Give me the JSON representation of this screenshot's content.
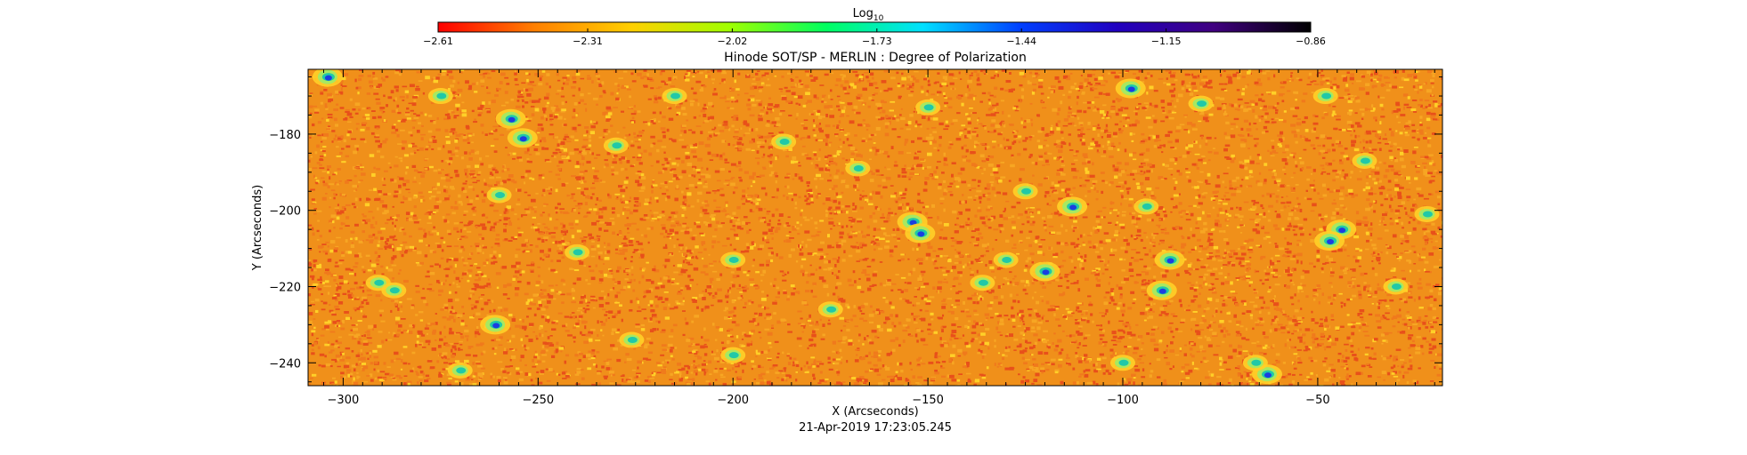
{
  "chart_data": {
    "type": "heatmap",
    "title": "Hinode SOT/SP - MERLIN : Degree of Polarization",
    "xlabel": "X (Arcseconds)",
    "ylabel": "Y (Arcseconds)",
    "timestamp": "21-Apr-2019 17:23:05.245",
    "xlim": [
      -309,
      -18
    ],
    "ylim": [
      -246,
      -163
    ],
    "x_ticks": [
      -300,
      -250,
      -200,
      -150,
      -100,
      -50
    ],
    "x_tick_labels": [
      "−300",
      "−250",
      "−200",
      "−150",
      "−100",
      "−50"
    ],
    "y_ticks": [
      -180,
      -200,
      -220,
      -240
    ],
    "y_tick_labels": [
      "−180",
      "−200",
      "−220",
      "−240"
    ],
    "colorbar": {
      "title": "Log",
      "title_subscript": "10",
      "range": [
        -2.61,
        -0.86
      ],
      "tick_values": [
        -2.61,
        -2.31,
        -2.02,
        -1.73,
        -1.44,
        -1.15,
        -0.86
      ],
      "tick_labels": [
        "−2.61",
        "−2.31",
        "−2.02",
        "−1.73",
        "−1.44",
        "−1.15",
        "−0.86"
      ],
      "colormap": [
        "#ff0000",
        "#ff8000",
        "#ffd000",
        "#a0ff00",
        "#00ff60",
        "#00e0ff",
        "#0040ff",
        "#2000c0",
        "#400080",
        "#000000"
      ]
    },
    "background_color": "#f0901a",
    "noise_colors": [
      "#e8501a",
      "#f07a1c",
      "#f7a623",
      "#ffd028"
    ],
    "features_note_colors": [
      "#a8e860",
      "#20c8a8",
      "#1a3ee0"
    ],
    "features": [
      {
        "x": -304,
        "y": -165,
        "level": 2
      },
      {
        "x": -257,
        "y": -176,
        "level": 2
      },
      {
        "x": -254,
        "y": -181,
        "level": 2
      },
      {
        "x": -230,
        "y": -183,
        "level": 1
      },
      {
        "x": -187,
        "y": -182,
        "level": 1
      },
      {
        "x": -168,
        "y": -189,
        "level": 1
      },
      {
        "x": -154,
        "y": -203,
        "level": 2
      },
      {
        "x": -152,
        "y": -206,
        "level": 2
      },
      {
        "x": -125,
        "y": -195,
        "level": 1
      },
      {
        "x": -113,
        "y": -199,
        "level": 2
      },
      {
        "x": -94,
        "y": -199,
        "level": 1
      },
      {
        "x": -98,
        "y": -168,
        "level": 2
      },
      {
        "x": -80,
        "y": -172,
        "level": 1
      },
      {
        "x": -44,
        "y": -205,
        "level": 2
      },
      {
        "x": -47,
        "y": -208,
        "level": 2
      },
      {
        "x": -38,
        "y": -187,
        "level": 1
      },
      {
        "x": -88,
        "y": -213,
        "level": 2
      },
      {
        "x": -90,
        "y": -221,
        "level": 2
      },
      {
        "x": -120,
        "y": -216,
        "level": 2
      },
      {
        "x": -130,
        "y": -213,
        "level": 1
      },
      {
        "x": -291,
        "y": -219,
        "level": 1
      },
      {
        "x": -287,
        "y": -221,
        "level": 1
      },
      {
        "x": -261,
        "y": -230,
        "level": 2
      },
      {
        "x": -226,
        "y": -234,
        "level": 1
      },
      {
        "x": -260,
        "y": -196,
        "level": 1
      },
      {
        "x": -63,
        "y": -243,
        "level": 2
      },
      {
        "x": -66,
        "y": -240,
        "level": 1
      },
      {
        "x": -240,
        "y": -211,
        "level": 1
      },
      {
        "x": -200,
        "y": -213,
        "level": 1
      },
      {
        "x": -175,
        "y": -226,
        "level": 1
      },
      {
        "x": -136,
        "y": -219,
        "level": 1
      },
      {
        "x": -30,
        "y": -220,
        "level": 1
      },
      {
        "x": -22,
        "y": -201,
        "level": 1
      },
      {
        "x": -275,
        "y": -170,
        "level": 1
      },
      {
        "x": -215,
        "y": -170,
        "level": 1
      },
      {
        "x": -150,
        "y": -173,
        "level": 1
      },
      {
        "x": -48,
        "y": -170,
        "level": 1
      },
      {
        "x": -200,
        "y": -238,
        "level": 1
      },
      {
        "x": -100,
        "y": -240,
        "level": 1
      },
      {
        "x": -270,
        "y": -242,
        "level": 1
      }
    ]
  }
}
